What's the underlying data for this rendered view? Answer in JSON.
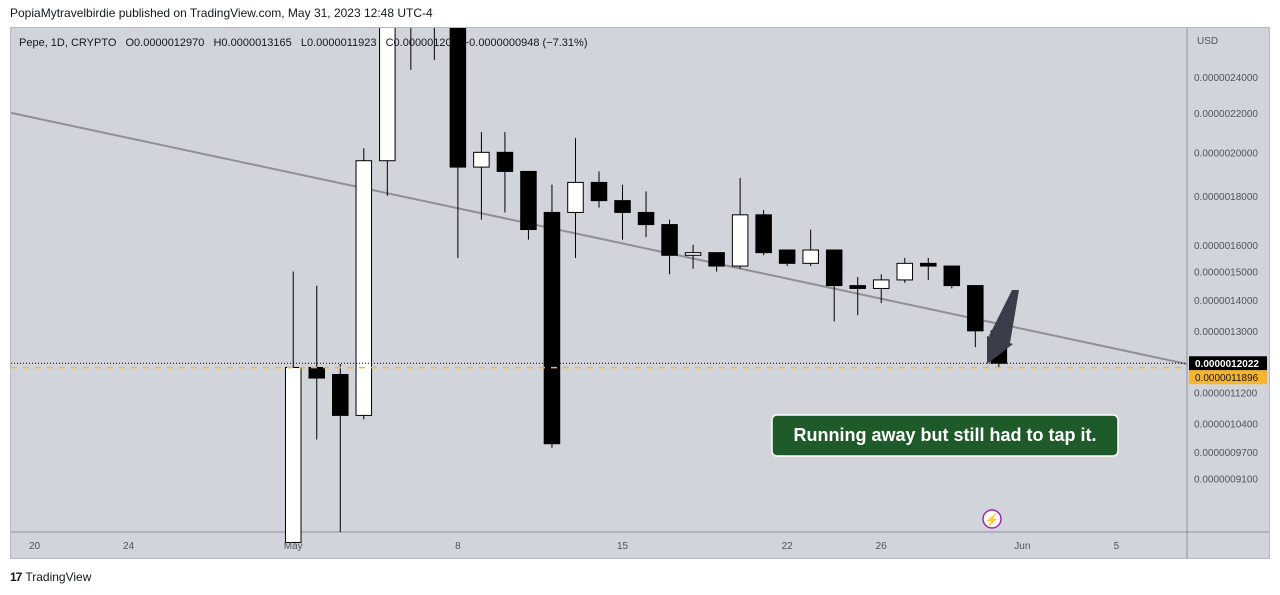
{
  "header": {
    "published": "PopiaMytravelbirdie published on TradingView.com, May 31, 2023 12:48 UTC-4"
  },
  "footer": {
    "brand": "TradingView",
    "logo_icon": "tradingview-logo-icon"
  },
  "legend": {
    "symbol": "Pepe, 1D, CRYPTO",
    "o_label": "O",
    "o": "0.0000012970",
    "h_label": "H",
    "h": "0.0000013165",
    "l_label": "L",
    "l": "0.0000011923",
    "c_label": "C",
    "c": "0.00000120",
    "change": "−0.0000000948 (−7.31%)"
  },
  "annotation": {
    "text": "Running away but still had to tap it.",
    "bg": "#1e5a2a"
  },
  "colors": {
    "pane_bg": "#d2d4dc",
    "up": "#ffffff",
    "down": "#000000",
    "trendline": "#8f9094",
    "price_badge": "#000000",
    "bid_badge": "#f7b52c"
  },
  "chart_data": {
    "type": "candlestick",
    "title": "Pepe, 1D, CRYPTO",
    "currency": "USD",
    "y_scale": "log",
    "ylim": [
      8e-07,
      2.7e-06
    ],
    "y_ticks": [
      "0.0000024000",
      "0.0000022000",
      "0.0000020000",
      "0.0000018000",
      "0.0000016000",
      "0.0000015000",
      "0.0000014000",
      "0.0000013000",
      "0.0000011200",
      "0.0000010400",
      "0.0000009700",
      "0.0000009100"
    ],
    "y_tick_values": [
      2.4e-06,
      2.2e-06,
      2e-06,
      1.8e-06,
      1.6e-06,
      1.5e-06,
      1.4e-06,
      1.3e-06,
      1.12e-06,
      1.04e-06,
      9.7e-07,
      9.1e-07
    ],
    "x_ticks": [
      {
        "label": "20",
        "date": "2023-04-20"
      },
      {
        "label": "24",
        "date": "2023-04-24"
      },
      {
        "label": "May",
        "date": "2023-05-01"
      },
      {
        "label": "8",
        "date": "2023-05-08"
      },
      {
        "label": "15",
        "date": "2023-05-15"
      },
      {
        "label": "22",
        "date": "2023-05-22"
      },
      {
        "label": "26",
        "date": "2023-05-26"
      },
      {
        "label": "Jun",
        "date": "2023-06-01"
      },
      {
        "label": "5",
        "date": "2023-06-05"
      }
    ],
    "xlim": [
      "2023-04-19",
      "2023-06-08"
    ],
    "last_price": "0.0000012022",
    "last_price_value": 1.2022e-06,
    "bid_price": "0.0000011896",
    "bid_price_value": 1.1896e-06,
    "candles": [
      {
        "date": "2023-05-01",
        "o": 7.8e-07,
        "h": 1.5e-06,
        "l": 7.8e-07,
        "c": 1.19e-06
      },
      {
        "date": "2023-05-02",
        "o": 1.19e-06,
        "h": 1.45e-06,
        "l": 1e-06,
        "c": 1.16e-06
      },
      {
        "date": "2023-05-03",
        "o": 1.17e-06,
        "h": 1.2e-06,
        "l": 8e-07,
        "c": 1.06e-06
      },
      {
        "date": "2023-05-04",
        "o": 1.06e-06,
        "h": 2.02e-06,
        "l": 1.05e-06,
        "c": 1.96e-06
      },
      {
        "date": "2023-05-05",
        "o": 1.96e-06,
        "h": 2.9e-06,
        "l": 1.8e-06,
        "c": 2.8e-06
      },
      {
        "date": "2023-05-06",
        "o": 2.8e-06,
        "h": 3e-06,
        "l": 2.44e-06,
        "c": 3e-06
      },
      {
        "date": "2023-05-07",
        "o": 2.9e-06,
        "h": 3e-06,
        "l": 2.5e-06,
        "c": 2.9e-06
      },
      {
        "date": "2023-05-08",
        "o": 2.9e-06,
        "h": 3e-06,
        "l": 1.55e-06,
        "c": 1.93e-06
      },
      {
        "date": "2023-05-09",
        "o": 1.93e-06,
        "h": 2.1e-06,
        "l": 1.7e-06,
        "c": 2e-06
      },
      {
        "date": "2023-05-10",
        "o": 2e-06,
        "h": 2.1e-06,
        "l": 1.73e-06,
        "c": 1.91e-06
      },
      {
        "date": "2023-05-11",
        "o": 1.91e-06,
        "h": 1.91e-06,
        "l": 1.62e-06,
        "c": 1.66e-06
      },
      {
        "date": "2023-05-12",
        "o": 1.73e-06,
        "h": 1.85e-06,
        "l": 9.8e-07,
        "c": 9.9e-07
      },
      {
        "date": "2023-05-13",
        "o": 1.73e-06,
        "h": 2.07e-06,
        "l": 1.55e-06,
        "c": 1.86e-06
      },
      {
        "date": "2023-05-14",
        "o": 1.86e-06,
        "h": 1.91e-06,
        "l": 1.75e-06,
        "c": 1.78e-06
      },
      {
        "date": "2023-05-15",
        "o": 1.78e-06,
        "h": 1.85e-06,
        "l": 1.62e-06,
        "c": 1.73e-06
      },
      {
        "date": "2023-05-16",
        "o": 1.73e-06,
        "h": 1.82e-06,
        "l": 1.63e-06,
        "c": 1.68e-06
      },
      {
        "date": "2023-05-17",
        "o": 1.68e-06,
        "h": 1.7e-06,
        "l": 1.49e-06,
        "c": 1.56e-06
      },
      {
        "date": "2023-05-18",
        "o": 1.56e-06,
        "h": 1.6e-06,
        "l": 1.51e-06,
        "c": 1.57e-06
      },
      {
        "date": "2023-05-19",
        "o": 1.57e-06,
        "h": 1.57e-06,
        "l": 1.5e-06,
        "c": 1.52e-06
      },
      {
        "date": "2023-05-20",
        "o": 1.52e-06,
        "h": 1.88e-06,
        "l": 1.51e-06,
        "c": 1.72e-06
      },
      {
        "date": "2023-05-21",
        "o": 1.72e-06,
        "h": 1.74e-06,
        "l": 1.56e-06,
        "c": 1.57e-06
      },
      {
        "date": "2023-05-22",
        "o": 1.58e-06,
        "h": 1.58e-06,
        "l": 1.52e-06,
        "c": 1.53e-06
      },
      {
        "date": "2023-05-23",
        "o": 1.53e-06,
        "h": 1.66e-06,
        "l": 1.52e-06,
        "c": 1.58e-06
      },
      {
        "date": "2023-05-24",
        "o": 1.58e-06,
        "h": 1.58e-06,
        "l": 1.33e-06,
        "c": 1.45e-06
      },
      {
        "date": "2023-05-25",
        "o": 1.45e-06,
        "h": 1.48e-06,
        "l": 1.35e-06,
        "c": 1.44e-06
      },
      {
        "date": "2023-05-26",
        "o": 1.44e-06,
        "h": 1.49e-06,
        "l": 1.39e-06,
        "c": 1.47e-06
      },
      {
        "date": "2023-05-27",
        "o": 1.47e-06,
        "h": 1.55e-06,
        "l": 1.46e-06,
        "c": 1.53e-06
      },
      {
        "date": "2023-05-28",
        "o": 1.53e-06,
        "h": 1.55e-06,
        "l": 1.47e-06,
        "c": 1.52e-06
      },
      {
        "date": "2023-05-29",
        "o": 1.52e-06,
        "h": 1.52e-06,
        "l": 1.44e-06,
        "c": 1.45e-06
      },
      {
        "date": "2023-05-30",
        "o": 1.45e-06,
        "h": 1.45e-06,
        "l": 1.25e-06,
        "c": 1.3e-06
      },
      {
        "date": "2023-05-31",
        "o": 1.3e-06,
        "h": 1.32e-06,
        "l": 1.19e-06,
        "c": 1.2022e-06
      }
    ],
    "trendline": [
      {
        "date": "2023-04-19",
        "price": 2.2e-06
      },
      {
        "date": "2023-06-08",
        "price": 1.2e-06
      }
    ]
  }
}
